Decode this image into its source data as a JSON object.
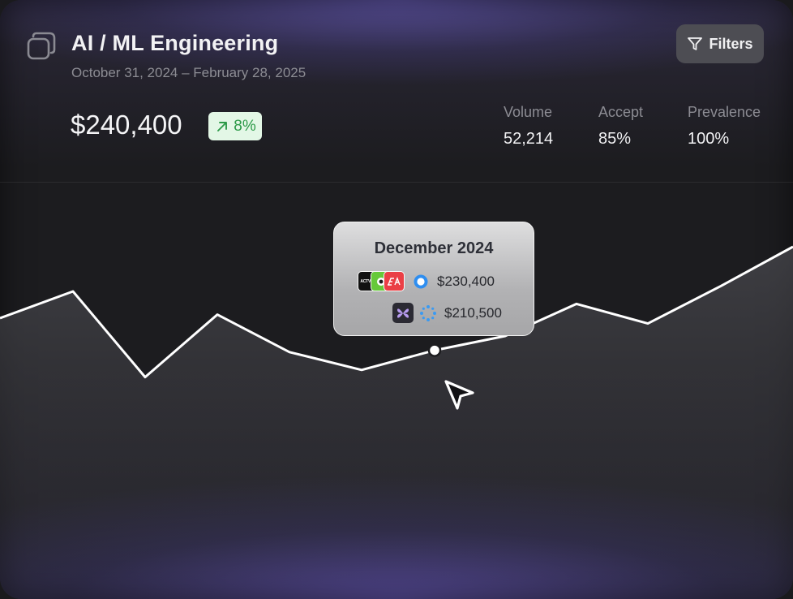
{
  "header": {
    "title": "AI / ML Engineering",
    "date_range": "October 31, 2024 – February 28, 2025",
    "filters_label": "Filters"
  },
  "summary": {
    "amount": "$240,400",
    "change": "8%",
    "change_direction": "up"
  },
  "stats": [
    {
      "label": "Volume",
      "value": "52,214"
    },
    {
      "label": "Accept",
      "value": "85%"
    },
    {
      "label": "Prevalence",
      "value": "100%"
    }
  ],
  "tooltip": {
    "title": "December 2024",
    "rows": [
      {
        "logos": [
          "activision-logo",
          "duolingo-logo",
          "ea-logo"
        ],
        "status_icon": "ring-icon",
        "value": "$230,400"
      },
      {
        "logos": [
          "perplexity-logo"
        ],
        "status_icon": "loading-spinner-icon",
        "value": "$210,500"
      }
    ]
  },
  "colors": {
    "accent_purple": "#6c60c4",
    "badge_bg": "#e3f7e6",
    "badge_text": "#2c9a48",
    "line": "#ffffff"
  },
  "chart_data": {
    "type": "area",
    "title": "",
    "xlabel": "",
    "ylabel": "",
    "x": [
      0,
      1,
      2,
      3,
      4,
      5,
      6,
      7,
      8,
      9,
      10,
      11
    ],
    "values": [
      40,
      55,
      7,
      42,
      21,
      11,
      22,
      30,
      48,
      37,
      58,
      80
    ],
    "ylim": [
      0,
      100
    ],
    "highlight_index": 6,
    "highlight_label": "December 2024",
    "grid": false,
    "legend": "none"
  }
}
